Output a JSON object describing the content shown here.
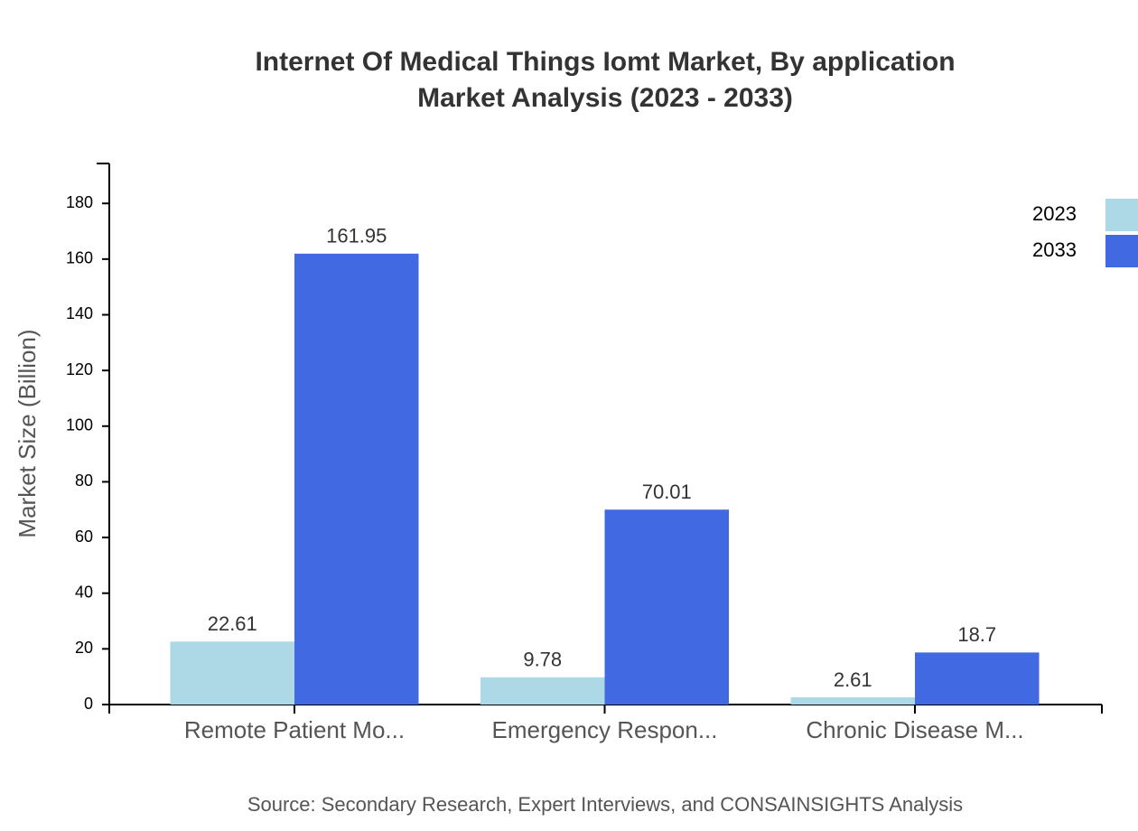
{
  "chart_data": {
    "type": "bar",
    "title": "Internet Of Medical Things Iomt Market, By application",
    "subtitle": "Market Analysis (2023 - 2033)",
    "y_label": "Market Size (Billion)",
    "source": "Source: Secondary Research, Expert Interviews, and CONSAINSIGHTS Analysis",
    "categories": [
      "Remote Patient Mo...",
      "Emergency Respon...",
      "Chronic Disease M..."
    ],
    "series": [
      {
        "name": "2023",
        "color": "#add8e6",
        "values": [
          22.61,
          9.78,
          2.61
        ]
      },
      {
        "name": "2033",
        "color": "#4169e1",
        "values": [
          161.95,
          70.01,
          18.7
        ]
      }
    ],
    "ylim": [
      0,
      194.34
    ],
    "yticks": [
      0,
      20,
      40,
      60,
      80,
      100,
      120,
      140,
      160,
      180
    ],
    "legend": "top-right"
  }
}
